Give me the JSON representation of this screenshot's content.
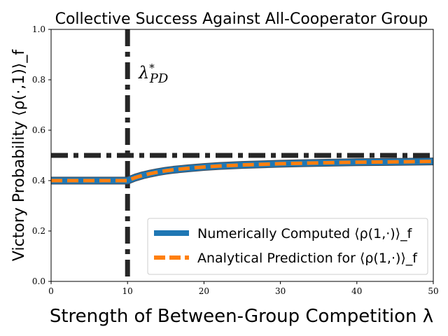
{
  "chart_data": {
    "type": "line",
    "title": "Collective Success Against All-Cooperator Group",
    "xlabel": "Strength of Between-Group Competition λ",
    "ylabel": "Victory Probability ⟨ρ(·,1)⟩_f",
    "xlim": [
      0,
      50
    ],
    "ylim": [
      0.0,
      1.0
    ],
    "xticks": [
      "0",
      "10",
      "20",
      "30",
      "40",
      "50"
    ],
    "yticks": [
      "0.0",
      "0.2",
      "0.4",
      "0.6",
      "0.8",
      "1.0"
    ],
    "grid": false,
    "legend_position": "lower-right",
    "x": [
      0,
      2,
      4,
      6,
      8,
      10,
      11,
      12,
      13,
      14,
      15,
      16,
      18,
      20,
      22,
      25,
      28,
      30,
      33,
      36,
      40,
      44,
      47,
      50
    ],
    "series": [
      {
        "name": "Numerically Computed ⟨ρ(1,·)⟩_f",
        "color": "#1f77b4",
        "style": "solid",
        "values": [
          0.4,
          0.4,
          0.4,
          0.4,
          0.4,
          0.4,
          0.412,
          0.421,
          0.428,
          0.434,
          0.439,
          0.443,
          0.449,
          0.454,
          0.458,
          0.462,
          0.465,
          0.467,
          0.469,
          0.471,
          0.473,
          0.474,
          0.475,
          0.476
        ]
      },
      {
        "name": "Analytical Prediction for ⟨ρ(1,·)⟩_f",
        "color": "#ff7f0e",
        "style": "dashed",
        "values": [
          0.4,
          0.4,
          0.4,
          0.4,
          0.4,
          0.4,
          0.412,
          0.421,
          0.428,
          0.434,
          0.439,
          0.443,
          0.449,
          0.454,
          0.458,
          0.462,
          0.465,
          0.467,
          0.469,
          0.471,
          0.473,
          0.474,
          0.475,
          0.476
        ]
      }
    ],
    "reference_lines": {
      "horizontal_y": 0.5,
      "vertical_x": 10,
      "color": "#262626"
    },
    "annotations": [
      {
        "text": "λ*_PD",
        "x": 10,
        "y": 0.8
      }
    ]
  }
}
